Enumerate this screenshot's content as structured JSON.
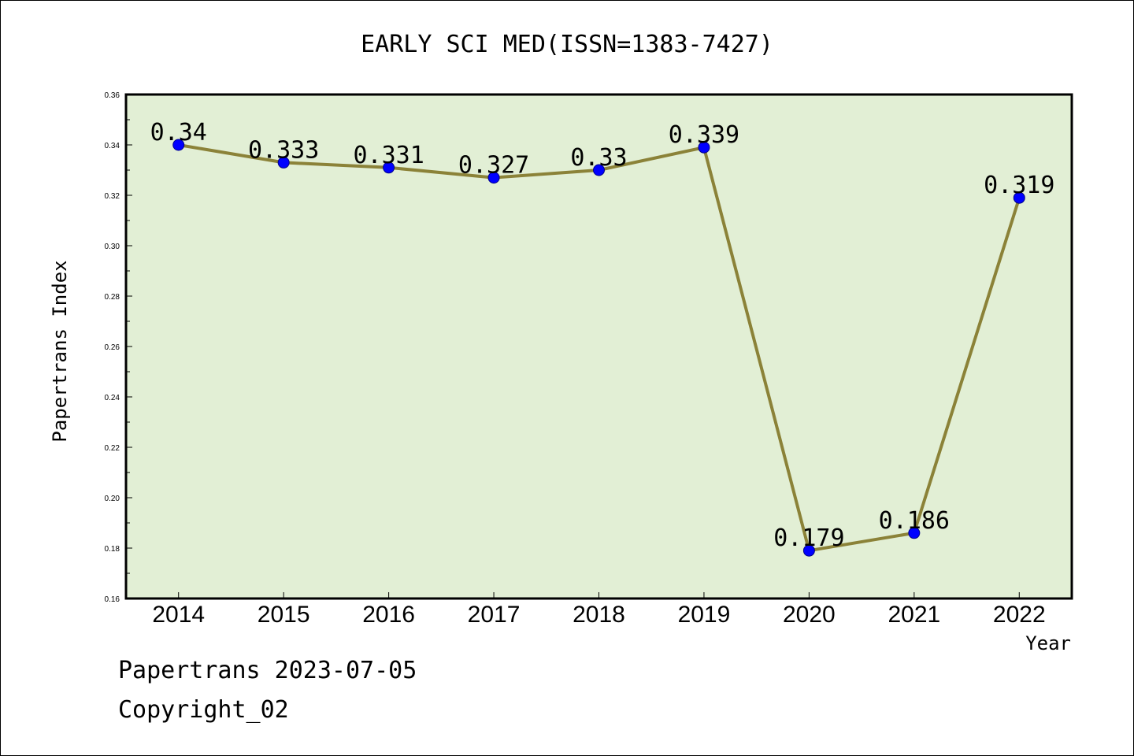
{
  "footer": {
    "line1": "Papertrans 2023-07-05",
    "line2": "Copyright_02"
  },
  "chart_data": {
    "type": "line",
    "title": "EARLY SCI MED(ISSN=1383-7427)",
    "xlabel": "Year",
    "ylabel": "Papertrans Index",
    "categories": [
      "2014",
      "2015",
      "2016",
      "2017",
      "2018",
      "2019",
      "2020",
      "2021",
      "2022"
    ],
    "values": [
      0.34,
      0.333,
      0.331,
      0.327,
      0.33,
      0.339,
      0.179,
      0.186,
      0.319
    ],
    "data_labels": [
      "0.34",
      "0.333",
      "0.331",
      "0.327",
      "0.33",
      "0.339",
      "0.179",
      "0.186",
      "0.319"
    ],
    "ylim": [
      0.16,
      0.36
    ],
    "yticks": [
      "0.16",
      "0.18",
      "0.20",
      "0.22",
      "0.24",
      "0.26",
      "0.28",
      "0.30",
      "0.32",
      "0.34",
      "0.36"
    ],
    "grid": false,
    "legend": "none",
    "colors": {
      "plot_background": "#e2efd5",
      "line": "#8b8238",
      "marker": "#0000ff"
    }
  }
}
